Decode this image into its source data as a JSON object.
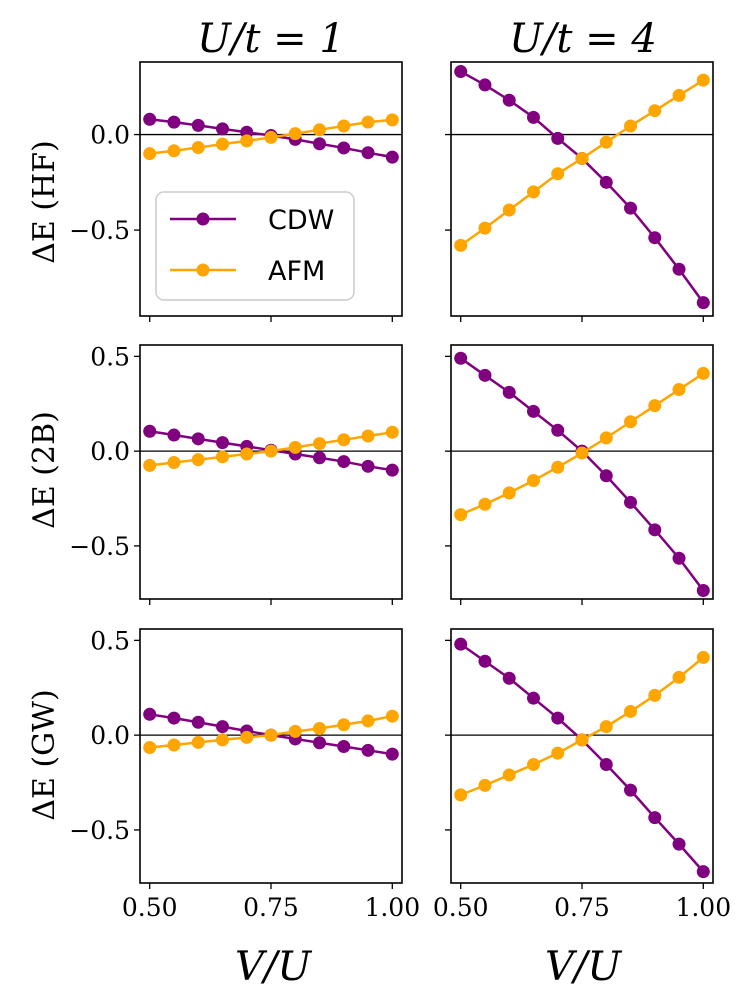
{
  "colors": {
    "cdw": "#800080",
    "afm": "#ffa500",
    "zero_line": "#000000",
    "frame": "#000000"
  },
  "column_titles": [
    "U/t = 1",
    "U/t = 4"
  ],
  "row_labels": [
    "ΔE (HF)",
    "ΔE (2B)",
    "ΔE (GW)"
  ],
  "xlabel": "V/U",
  "legend": {
    "location": "lower-left of top-left panel",
    "entries": [
      "CDW",
      "AFM"
    ]
  },
  "chart_data": [
    {
      "type": "line",
      "panel": "top-left",
      "title": "U/t = 1",
      "ylabel": "ΔE (HF)",
      "xlim": [
        0.48,
        1.02
      ],
      "ylim": [
        -0.95,
        0.38
      ],
      "xticks": [
        0.5,
        0.75,
        1.0
      ],
      "xtick_labels": [
        "0.50",
        "0.75",
        "1.00"
      ],
      "yticks": [
        0.0,
        -0.5
      ],
      "ytick_labels": [
        "0.0",
        "−0.5"
      ],
      "x": [
        0.5,
        0.55,
        0.6,
        0.65,
        0.7,
        0.75,
        0.8,
        0.85,
        0.9,
        0.95,
        1.0
      ],
      "series": [
        {
          "name": "CDW",
          "values": [
            0.08,
            0.065,
            0.048,
            0.03,
            0.012,
            -0.005,
            -0.025,
            -0.048,
            -0.07,
            -0.095,
            -0.118
          ]
        },
        {
          "name": "AFM",
          "values": [
            -0.1,
            -0.085,
            -0.068,
            -0.05,
            -0.033,
            -0.015,
            0.005,
            0.025,
            0.045,
            0.065,
            0.077
          ]
        }
      ]
    },
    {
      "type": "line",
      "panel": "top-right",
      "title": "U/t = 4",
      "ylabel": "",
      "xlim": [
        0.48,
        1.02
      ],
      "ylim": [
        -0.95,
        0.38
      ],
      "xticks": [
        0.5,
        0.75,
        1.0
      ],
      "xtick_labels": [
        "0.50",
        "0.75",
        "1.00"
      ],
      "yticks": [
        0.0,
        -0.5
      ],
      "ytick_labels": [
        "",
        ""
      ],
      "x": [
        0.5,
        0.55,
        0.6,
        0.65,
        0.7,
        0.75,
        0.8,
        0.85,
        0.9,
        0.95,
        1.0
      ],
      "series": [
        {
          "name": "CDW",
          "values": [
            0.33,
            0.26,
            0.18,
            0.09,
            -0.02,
            -0.125,
            -0.25,
            -0.385,
            -0.54,
            -0.705,
            -0.88
          ]
        },
        {
          "name": "AFM",
          "values": [
            -0.58,
            -0.49,
            -0.395,
            -0.3,
            -0.205,
            -0.125,
            -0.04,
            0.045,
            0.125,
            0.205,
            0.285
          ]
        }
      ]
    },
    {
      "type": "line",
      "panel": "middle-left",
      "title": "",
      "ylabel": "ΔE (2B)",
      "xlim": [
        0.48,
        1.02
      ],
      "ylim": [
        -0.78,
        0.56
      ],
      "xticks": [
        0.5,
        0.75,
        1.0
      ],
      "xtick_labels": [
        "0.50",
        "0.75",
        "1.00"
      ],
      "yticks": [
        0.5,
        0.0,
        -0.5
      ],
      "ytick_labels": [
        "0.5",
        "0.0",
        "−0.5"
      ],
      "x": [
        0.5,
        0.55,
        0.6,
        0.65,
        0.7,
        0.75,
        0.8,
        0.85,
        0.9,
        0.95,
        1.0
      ],
      "series": [
        {
          "name": "CDW",
          "values": [
            0.105,
            0.085,
            0.065,
            0.045,
            0.025,
            0.005,
            -0.015,
            -0.035,
            -0.055,
            -0.08,
            -0.1
          ]
        },
        {
          "name": "AFM",
          "values": [
            -0.075,
            -0.06,
            -0.045,
            -0.03,
            -0.015,
            0.0,
            0.02,
            0.04,
            0.06,
            0.08,
            0.1
          ]
        }
      ]
    },
    {
      "type": "line",
      "panel": "middle-right",
      "title": "",
      "ylabel": "",
      "xlim": [
        0.48,
        1.02
      ],
      "ylim": [
        -0.78,
        0.56
      ],
      "xticks": [
        0.5,
        0.75,
        1.0
      ],
      "xtick_labels": [
        "0.50",
        "0.75",
        "1.00"
      ],
      "yticks": [
        0.5,
        0.0,
        -0.5
      ],
      "ytick_labels": [
        "",
        "",
        ""
      ],
      "x": [
        0.5,
        0.55,
        0.6,
        0.65,
        0.7,
        0.75,
        0.8,
        0.85,
        0.9,
        0.95,
        1.0
      ],
      "series": [
        {
          "name": "CDW",
          "values": [
            0.49,
            0.4,
            0.31,
            0.21,
            0.11,
            0.0,
            -0.13,
            -0.27,
            -0.415,
            -0.565,
            -0.735
          ]
        },
        {
          "name": "AFM",
          "values": [
            -0.335,
            -0.28,
            -0.22,
            -0.155,
            -0.085,
            -0.01,
            0.07,
            0.155,
            0.24,
            0.325,
            0.41
          ]
        }
      ]
    },
    {
      "type": "line",
      "panel": "bottom-left",
      "title": "",
      "ylabel": "ΔE (GW)",
      "xlim": [
        0.48,
        1.02
      ],
      "ylim": [
        -0.78,
        0.56
      ],
      "xticks": [
        0.5,
        0.75,
        1.0
      ],
      "xtick_labels": [
        "0.50",
        "0.75",
        "1.00"
      ],
      "yticks": [
        0.5,
        0.0,
        -0.5
      ],
      "ytick_labels": [
        "0.5",
        "0.0",
        "−0.5"
      ],
      "x": [
        0.5,
        0.55,
        0.6,
        0.65,
        0.7,
        0.75,
        0.8,
        0.85,
        0.9,
        0.95,
        1.0
      ],
      "series": [
        {
          "name": "CDW",
          "values": [
            0.11,
            0.09,
            0.068,
            0.045,
            0.022,
            0.0,
            -0.02,
            -0.04,
            -0.06,
            -0.08,
            -0.1
          ]
        },
        {
          "name": "AFM",
          "values": [
            -0.065,
            -0.052,
            -0.038,
            -0.025,
            -0.012,
            0.0,
            0.02,
            0.035,
            0.055,
            0.075,
            0.1
          ]
        }
      ]
    },
    {
      "type": "line",
      "panel": "bottom-right",
      "title": "",
      "ylabel": "",
      "xlim": [
        0.48,
        1.02
      ],
      "ylim": [
        -0.78,
        0.56
      ],
      "xticks": [
        0.5,
        0.75,
        1.0
      ],
      "xtick_labels": [
        "0.50",
        "0.75",
        "1.00"
      ],
      "yticks": [
        0.5,
        0.0,
        -0.5
      ],
      "ytick_labels": [
        "",
        "",
        ""
      ],
      "x": [
        0.5,
        0.55,
        0.6,
        0.65,
        0.7,
        0.75,
        0.8,
        0.85,
        0.9,
        0.95,
        1.0
      ],
      "series": [
        {
          "name": "CDW",
          "values": [
            0.48,
            0.39,
            0.3,
            0.195,
            0.09,
            -0.025,
            -0.155,
            -0.29,
            -0.435,
            -0.575,
            -0.72
          ]
        },
        {
          "name": "AFM",
          "values": [
            -0.315,
            -0.265,
            -0.21,
            -0.155,
            -0.095,
            -0.025,
            0.045,
            0.125,
            0.21,
            0.305,
            0.41
          ]
        }
      ]
    }
  ]
}
